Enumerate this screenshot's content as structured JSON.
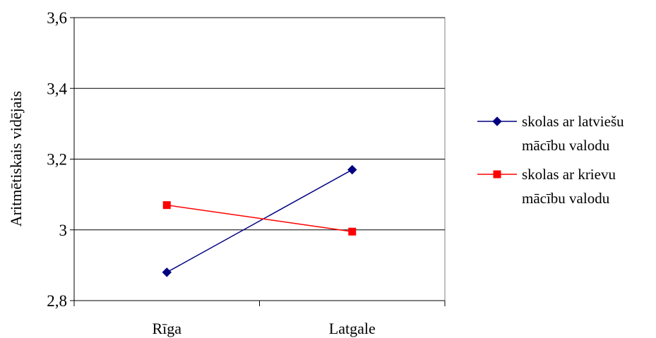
{
  "chart_data": {
    "type": "line",
    "categories": [
      "Rīga",
      "Latgale"
    ],
    "series": [
      {
        "name_lines": [
          "skolas ar latviešu",
          "mācību valodu"
        ],
        "values": [
          2.88,
          3.17
        ],
        "color": "#000080",
        "marker": "diamond"
      },
      {
        "name_lines": [
          "skolas ar krievu",
          "mācību valodu"
        ],
        "values": [
          3.07,
          2.995
        ],
        "color": "#ff0000",
        "marker": "square"
      }
    ],
    "ylabel": "Aritmētiskais vidējais",
    "ylim": [
      2.8,
      3.6
    ],
    "yticks": [
      2.8,
      3,
      3.2,
      3.4,
      3.6
    ],
    "ytick_labels": [
      "2,8",
      "3",
      "3,2",
      "3,4",
      "3,6"
    ],
    "grid": true,
    "legend_position": "right"
  }
}
